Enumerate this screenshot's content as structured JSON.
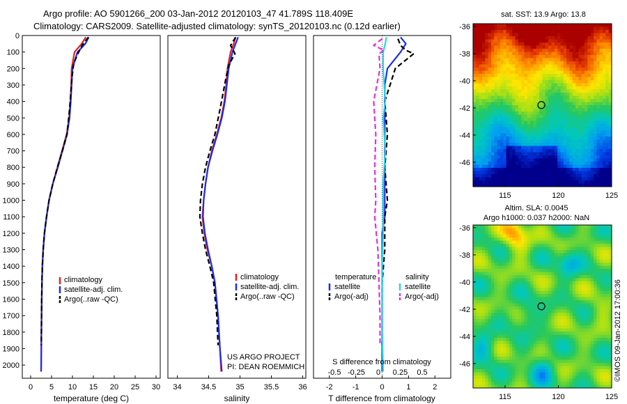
{
  "header": {
    "line1": "Argo profile: AO 5901266_200 03-Jan-2012 20120103_47 41.789S 118.409E",
    "line2": "Climatology: CARS2009. Satellite-adjusted climatology: synTS_20120103.nc (0.12d earlier)"
  },
  "colors": {
    "climatology": "#e02020",
    "satellite": "#1a2cf0",
    "argo": "#000000",
    "satellite_salinity": "#22d8e8",
    "argo_salinity_adj": "#e030e0"
  },
  "chart_data": [
    {
      "type": "line",
      "panel": "temperature",
      "xlabel": "temperature (deg C)",
      "ylabel": "",
      "xlim": [
        -2,
        31
      ],
      "ylim": [
        2080,
        0
      ],
      "xticks": [
        "0",
        "5",
        "10",
        "15",
        "20",
        "25",
        "30"
      ],
      "xtick_values": [
        0,
        5,
        10,
        15,
        20,
        25,
        30
      ],
      "yticks": [
        "0",
        "100",
        "200",
        "300",
        "400",
        "500",
        "600",
        "700",
        "800",
        "900",
        "1000",
        "1100",
        "1200",
        "1300",
        "1400",
        "1500",
        "1600",
        "1700",
        "1800",
        "1900",
        "2000"
      ],
      "ytick_values": [
        0,
        100,
        200,
        300,
        400,
        500,
        600,
        700,
        800,
        900,
        1000,
        1100,
        1200,
        1300,
        1400,
        1500,
        1600,
        1700,
        1800,
        1900,
        2000
      ],
      "legend": [
        "climatology",
        "satellite-adj. clim.",
        "Argo(..raw -QC)"
      ],
      "series": [
        {
          "name": "climatology",
          "style": "solid",
          "color": "#e02020",
          "x": [
            13.2,
            12.2,
            10.5,
            9.8,
            9.7,
            9.5,
            9.2,
            8.6,
            7.5,
            6.4,
            5.3,
            4.4,
            3.8,
            3.3,
            3.0,
            2.8,
            2.7,
            2.6,
            2.55,
            2.5
          ],
          "y": [
            10,
            50,
            100,
            200,
            300,
            400,
            500,
            600,
            700,
            800,
            900,
            1000,
            1100,
            1200,
            1300,
            1400,
            1500,
            1700,
            1900,
            2040
          ]
        },
        {
          "name": "satellite-adj. clim.",
          "style": "solid",
          "color": "#1a2cf0",
          "x": [
            13.9,
            13.1,
            11.2,
            10.0,
            9.8,
            9.6,
            9.3,
            8.7,
            7.6,
            6.5,
            5.3,
            4.4,
            3.8,
            3.3,
            3.0,
            2.8,
            2.7,
            2.6,
            2.55,
            2.5
          ],
          "y": [
            10,
            50,
            100,
            200,
            300,
            400,
            500,
            600,
            700,
            800,
            900,
            1000,
            1100,
            1200,
            1300,
            1400,
            1500,
            1700,
            1900,
            2040
          ]
        },
        {
          "name": "Argo(..raw -QC)",
          "style": "dashed",
          "color": "#000000",
          "x": [
            13.8,
            12.3,
            11.3,
            10.3,
            9.9,
            9.6,
            9.3,
            8.7,
            7.6,
            6.4,
            5.3,
            4.4,
            3.8,
            3.3,
            3.0,
            2.8,
            2.7,
            2.6,
            2.55
          ],
          "y": [
            10,
            60,
            110,
            170,
            250,
            350,
            450,
            600,
            700,
            800,
            900,
            1000,
            1100,
            1200,
            1300,
            1400,
            1500,
            1700,
            1880
          ]
        }
      ]
    },
    {
      "type": "line",
      "panel": "salinity",
      "xlabel": "salinity",
      "xlim": [
        33.85,
        36.05
      ],
      "ylim": [
        2080,
        0
      ],
      "xticks": [
        "34",
        "34.5",
        "35",
        "35.5",
        "36"
      ],
      "xtick_values": [
        34,
        34.5,
        35,
        35.5,
        36
      ],
      "legend": [
        "climatology",
        "satellite-adj. clim.",
        "Argo(..raw -QC)"
      ],
      "annotation": [
        "US ARGO PROJECT",
        "PI: DEAN ROEMMICH"
      ],
      "series": [
        {
          "name": "climatology",
          "style": "solid",
          "color": "#e02020",
          "x": [
            34.93,
            34.9,
            34.85,
            34.8,
            34.78,
            34.75,
            34.7,
            34.63,
            34.55,
            34.49,
            34.45,
            34.42,
            34.4,
            34.43,
            34.48,
            34.55,
            34.6,
            34.65,
            34.68,
            34.7
          ],
          "y": [
            10,
            50,
            100,
            200,
            300,
            400,
            500,
            600,
            700,
            800,
            900,
            1000,
            1100,
            1200,
            1300,
            1400,
            1500,
            1700,
            1900,
            2040
          ]
        },
        {
          "name": "satellite-adj. clim.",
          "style": "solid",
          "color": "#1a2cf0",
          "x": [
            34.97,
            34.93,
            34.88,
            34.82,
            34.79,
            34.76,
            34.71,
            34.64,
            34.56,
            34.49,
            34.45,
            34.42,
            34.41,
            34.44,
            34.49,
            34.55,
            34.6,
            34.65,
            34.68,
            34.71
          ],
          "y": [
            10,
            50,
            100,
            200,
            300,
            400,
            500,
            600,
            700,
            800,
            900,
            1000,
            1100,
            1200,
            1300,
            1400,
            1500,
            1700,
            1900,
            2040
          ]
        },
        {
          "name": "Argo(..raw -QC)",
          "style": "dashed",
          "color": "#000000",
          "x": [
            34.93,
            34.85,
            34.92,
            34.82,
            34.78,
            34.73,
            34.68,
            34.6,
            34.52,
            34.45,
            34.4,
            34.37,
            34.36,
            34.4,
            34.45,
            34.52,
            34.58,
            34.63,
            34.65
          ],
          "y": [
            10,
            60,
            110,
            180,
            250,
            350,
            450,
            600,
            700,
            800,
            900,
            1000,
            1100,
            1200,
            1300,
            1400,
            1500,
            1700,
            1880
          ]
        }
      ]
    },
    {
      "type": "line",
      "panel": "differences",
      "xlabel": "T difference from climatology",
      "xlabel_top": "S difference from climatology",
      "xlim": [
        -2.6,
        2.6
      ],
      "ylim": [
        2080,
        0
      ],
      "xticks": [
        "-2",
        "-1",
        "0",
        "1",
        "2"
      ],
      "xtick_values": [
        -2,
        -1,
        0,
        1,
        2
      ],
      "s_xticks": [
        "-0.5",
        "-0.25",
        "0",
        "0.25",
        "0.5"
      ],
      "s_xtick_values": [
        -0.5,
        -0.25,
        0,
        0.25,
        0.5
      ],
      "legend_headers": [
        "temperature",
        "salinity"
      ],
      "legend": [
        "satellite",
        "Argo(-adj)",
        "satellite",
        "Argo(-adj)"
      ],
      "series": [
        {
          "name": "satellite",
          "group": "temperature",
          "style": "solid",
          "color": "#1a2cf0",
          "x": [
            0.7,
            0.9,
            0.7,
            0.2,
            0.1,
            0.1,
            0.1,
            0.1,
            0.1,
            0.1,
            0.1,
            0.0,
            0.0,
            0.0,
            0.0,
            0.0
          ],
          "y": [
            10,
            50,
            100,
            200,
            300,
            400,
            500,
            700,
            900,
            1000,
            1100,
            1200,
            1400,
            1600,
            1800,
            2040
          ]
        },
        {
          "name": "Argo(-adj)",
          "group": "temperature",
          "style": "dashed",
          "color": "#000000",
          "x": [
            0.6,
            0.7,
            0.9,
            1.2,
            0.5,
            0.3,
            0.1,
            0.2,
            0.1,
            0.2,
            0.1,
            0.1,
            0.0,
            0.0,
            0.0
          ],
          "y": [
            20,
            60,
            90,
            110,
            200,
            300,
            400,
            600,
            800,
            1000,
            1100,
            1300,
            1500,
            1700,
            1880
          ]
        },
        {
          "name": "satellite",
          "group": "salinity",
          "style": "solid",
          "color": "#22d8e8",
          "x": [
            0.04,
            0.03,
            0.01,
            0.01,
            0.02,
            0.03,
            0.01,
            0.03,
            0.01,
            0.01,
            0.01,
            0.01,
            0.0,
            0.0,
            0.0,
            0.01
          ],
          "y": [
            10,
            50,
            100,
            200,
            300,
            400,
            500,
            700,
            900,
            1000,
            1100,
            1200,
            1400,
            1600,
            1800,
            2040
          ]
        },
        {
          "name": "Argo(-adj)",
          "group": "salinity",
          "style": "dashed",
          "color": "#e030e0",
          "x": [
            0.0,
            -0.08,
            0.02,
            -0.03,
            -0.02,
            -0.05,
            -0.08,
            -0.06,
            -0.07,
            -0.06,
            -0.07,
            -0.04,
            -0.03,
            -0.02,
            -0.02
          ],
          "y": [
            20,
            60,
            90,
            110,
            200,
            300,
            400,
            600,
            800,
            1000,
            1100,
            1300,
            1500,
            1700,
            1880
          ]
        }
      ]
    },
    {
      "type": "heatmap",
      "panel": "sst-map",
      "title": "sat. SST: 13.9  Argo: 13.8",
      "xlim": [
        112,
        125
      ],
      "ylim": [
        -47.8,
        -35.8
      ],
      "xticks": [
        "115",
        "120",
        "125"
      ],
      "xtick_values": [
        115,
        120,
        125
      ],
      "yticks": [
        "-36",
        "-38",
        "-40",
        "-42",
        "-44",
        "-46"
      ],
      "ytick_values": [
        -36,
        -38,
        -40,
        -42,
        -44,
        -46
      ],
      "marker": {
        "lon": 118.409,
        "lat": -41.789
      }
    },
    {
      "type": "heatmap",
      "panel": "sla-map",
      "title_line1": "Altim. SLA: 0.0045",
      "title_line2": "Argo h1000: 0.037 h2000: NaN",
      "xlim": [
        112,
        125
      ],
      "ylim": [
        -47.8,
        -35.8
      ],
      "xticks": [
        "115",
        "120",
        "125"
      ],
      "xtick_values": [
        115,
        120,
        125
      ],
      "yticks": [
        "-36",
        "-38",
        "-40",
        "-42",
        "-44",
        "-46"
      ],
      "ytick_values": [
        -36,
        -38,
        -40,
        -42,
        -44,
        -46
      ],
      "marker": {
        "lon": 118.409,
        "lat": -41.789
      }
    }
  ],
  "credit": "©IMOS 09-Jan-2012 17:00:36"
}
